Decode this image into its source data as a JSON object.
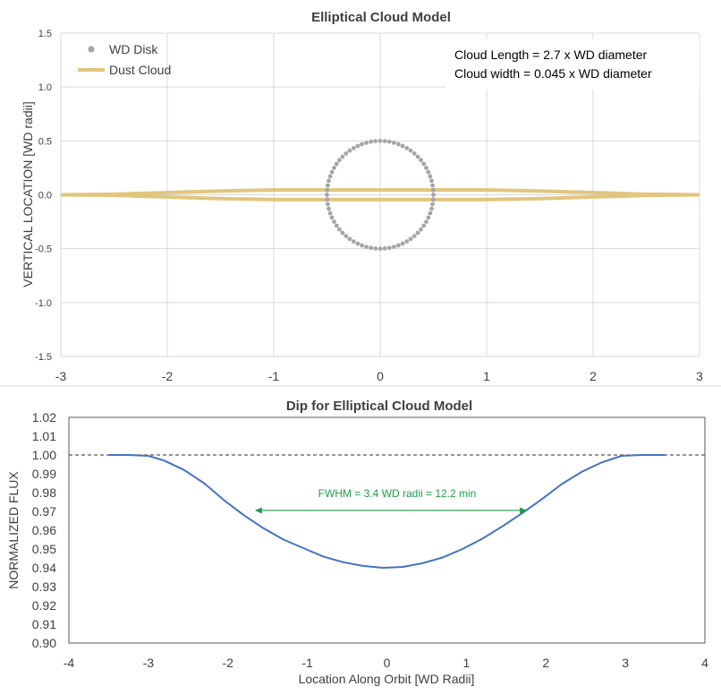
{
  "chart_data": [
    {
      "type": "scatter",
      "title": "Elliptical Cloud Model",
      "xlabel": "",
      "ylabel": "VERTICAL LOCATION [WD radii]",
      "xlim": [
        -3,
        3
      ],
      "ylim": [
        -1.5,
        1.5
      ],
      "x_ticks": [
        -3,
        -2,
        -1,
        0,
        1,
        2,
        3
      ],
      "y_ticks": [
        1.5,
        1.0,
        0.5,
        0.0,
        -0.5,
        -1.0,
        -1.5
      ],
      "y_tick_labels": [
        "1.5",
        "1.0",
        "0.5",
        "0.0",
        "-0.5",
        "-1.0",
        "-1.5"
      ],
      "grid": true,
      "legend_position": "top-left",
      "series": [
        {
          "name": "WD Disk",
          "type": "scatter",
          "color": "#a5a5a5",
          "shape": "circle",
          "center": [
            0,
            0
          ],
          "radius": 0.5,
          "points": 72
        },
        {
          "name": "Dust Cloud",
          "type": "line",
          "color": "#e2c57e",
          "upper": {
            "x": [
              -3.0,
              -2.5,
              -2.2,
              -1.85,
              -1.5,
              -1.0,
              1.0,
              1.5,
              1.85,
              2.2,
              2.5,
              3.0
            ],
            "y": [
              0.0,
              0.005,
              0.015,
              0.025,
              0.035,
              0.045,
              0.045,
              0.035,
              0.025,
              0.015,
              0.005,
              0.0
            ]
          },
          "lower": {
            "x": [
              -3.0,
              -2.5,
              -2.2,
              -1.85,
              -1.5,
              -1.0,
              1.0,
              1.5,
              1.85,
              2.2,
              2.5,
              3.0
            ],
            "y": [
              0.0,
              -0.005,
              -0.015,
              -0.025,
              -0.035,
              -0.045,
              -0.045,
              -0.035,
              -0.025,
              -0.015,
              -0.005,
              0.0
            ]
          }
        }
      ],
      "annotations": [
        "Cloud Length = 2.7 x WD diameter",
        "Cloud width = 0.045 x WD diameter"
      ]
    },
    {
      "type": "line",
      "title": "Dip for Elliptical Cloud Model",
      "xlabel": "Location Along Orbit [WD Radii]",
      "ylabel": "NORMALIZED FLUX",
      "xlim": [
        -4,
        4
      ],
      "ylim": [
        0.9,
        1.02
      ],
      "x_ticks": [
        -4,
        -3,
        -2,
        -1,
        0,
        1,
        2,
        3,
        4
      ],
      "y_ticks": [
        1.02,
        1.01,
        1.0,
        0.99,
        0.98,
        0.97,
        0.96,
        0.95,
        0.94,
        0.93,
        0.92,
        0.91,
        0.9
      ],
      "y_tick_labels": [
        "1.02",
        "1.01",
        "1.00",
        "0.99",
        "0.98",
        "0.97",
        "0.96",
        "0.95",
        "0.94",
        "0.93",
        "0.92",
        "0.91",
        "0.90"
      ],
      "grid": false,
      "reference_line": {
        "y": 1.0,
        "style": "dashed",
        "color": "#595959"
      },
      "series": [
        {
          "color": "#4472c4",
          "x": [
            -3.5,
            -3.25,
            -3.0,
            -2.8,
            -2.55,
            -2.3,
            -2.05,
            -1.8,
            -1.55,
            -1.3,
            -1.05,
            -0.8,
            -0.55,
            -0.3,
            -0.05,
            0.2,
            0.45,
            0.7,
            0.95,
            1.2,
            1.45,
            1.7,
            1.95,
            2.2,
            2.45,
            2.7,
            2.95,
            3.2,
            3.5
          ],
          "y": [
            1.0,
            1.0,
            0.9995,
            0.997,
            0.992,
            0.985,
            0.976,
            0.968,
            0.961,
            0.955,
            0.9505,
            0.946,
            0.943,
            0.941,
            0.94,
            0.9405,
            0.9425,
            0.9455,
            0.95,
            0.9555,
            0.962,
            0.969,
            0.9765,
            0.9845,
            0.991,
            0.996,
            0.9995,
            1.0,
            1.0
          ]
        }
      ],
      "annotations": [
        {
          "text": "FWHM = 3.4 WD radii = 12.2 min",
          "color": "#1f9c4a",
          "arrow_x": [
            -1.65,
            1.75
          ],
          "arrow_y": 0.9705
        }
      ]
    }
  ]
}
